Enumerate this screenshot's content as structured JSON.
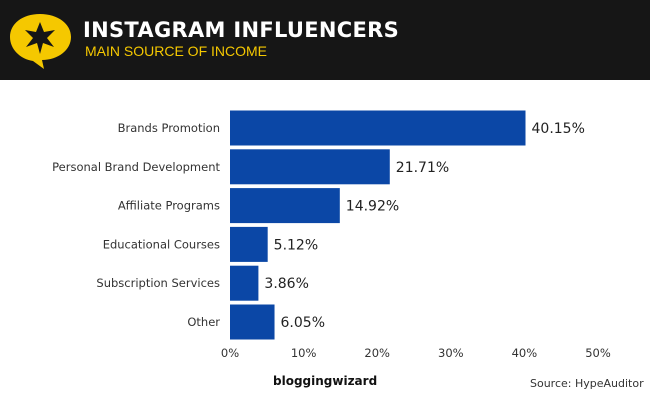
{
  "header": {
    "title": "INSTAGRAM INFLUENCERS",
    "subtitle": "MAIN SOURCE OF INCOME"
  },
  "footer": {
    "brand": "bloggingwizard",
    "source": "Source: HypeAuditor"
  },
  "colors": {
    "bar": "#0b47a6",
    "header_bg": "#161616",
    "accent": "#f5c800"
  },
  "chart_data": {
    "type": "bar",
    "orientation": "horizontal",
    "categories": [
      "Brands Promotion",
      "Personal Brand Development",
      "Affiliate Programs",
      "Educational Courses",
      "Subscription Services",
      "Other"
    ],
    "values": [
      40.15,
      21.71,
      14.92,
      5.12,
      3.86,
      6.05
    ],
    "data_labels": [
      "40.15%",
      "21.71%",
      "14.92%",
      "5.12%",
      "3.86%",
      "6.05%"
    ],
    "xlim": [
      0,
      50
    ],
    "xticks": [
      "0%",
      "10%",
      "20%",
      "30%",
      "40%",
      "50%"
    ],
    "grid": false
  }
}
